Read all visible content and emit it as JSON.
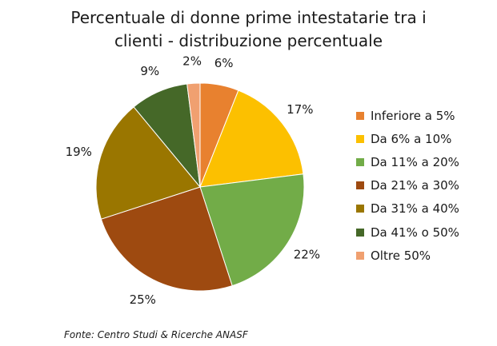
{
  "chart_data": {
    "type": "pie",
    "title_lines": [
      "Percentuale di donne prime intestatarie tra i",
      "clienti - distribuzione percentuale"
    ],
    "categories": [
      "Inferiore a 5%",
      "Da 6% a 10%",
      "Da 11% a 20%",
      "Da 21% a 30%",
      "Da 31% a 40%",
      "Da 41% o 50%",
      "Oltre 50%"
    ],
    "values": [
      6,
      17,
      22,
      25,
      19,
      9,
      2
    ],
    "value_labels": [
      "6%",
      "17%",
      "22%",
      "25%",
      "19%",
      "9%",
      "2%"
    ],
    "colors": [
      "#E8812F",
      "#FCC000",
      "#72AC48",
      "#9E4A10",
      "#9A7600",
      "#456828",
      "#F0A070"
    ],
    "start": "12 o'clock, clockwise",
    "legend_position": "right"
  },
  "source_note": "Fonte: Centro Studi & Ricerche ANASF"
}
